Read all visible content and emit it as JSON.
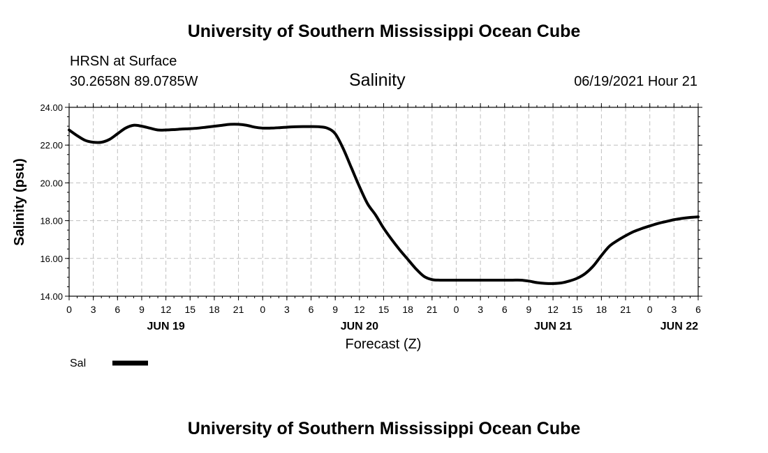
{
  "page_title": "University of Southern Mississippi Ocean Cube",
  "footer_title": "University of Southern Mississippi Ocean Cube",
  "station": {
    "name": "HRSN at Surface",
    "coords": "30.2658N  89.0785W",
    "datetime": "06/19/2021 Hour 21"
  },
  "legend": {
    "label": "Sal"
  },
  "chart_data": {
    "type": "line",
    "title": "Salinity",
    "xlabel": "Forecast (Z)",
    "ylabel": "Salinity (psu)",
    "xlim": [
      0,
      78
    ],
    "ylim": [
      14,
      24
    ],
    "y_ticks": [
      "14.00",
      "16.00",
      "18.00",
      "20.00",
      "22.00",
      "24.00"
    ],
    "x_ticks": [
      "0",
      "3",
      "6",
      "9",
      "12",
      "15",
      "18",
      "21",
      "0",
      "3",
      "6",
      "9",
      "12",
      "15",
      "18",
      "21",
      "0",
      "3",
      "6",
      "9",
      "12",
      "15",
      "18",
      "21",
      "0",
      "3",
      "6"
    ],
    "day_labels": [
      {
        "label": "JUN 19",
        "hour": 12
      },
      {
        "label": "JUN 20",
        "hour": 36
      },
      {
        "label": "JUN 21",
        "hour": 60
      },
      {
        "label": "JUN 22",
        "hour": 78
      }
    ],
    "grid": true,
    "series": [
      {
        "name": "Sal",
        "color": "#000000",
        "x": [
          0,
          1,
          2,
          3,
          4,
          5,
          6,
          7,
          8,
          9,
          10,
          11,
          12,
          13,
          14,
          15,
          16,
          17,
          18,
          19,
          20,
          21,
          22,
          23,
          24,
          25,
          26,
          27,
          28,
          29,
          30,
          31,
          32,
          33,
          34,
          35,
          36,
          37,
          38,
          39,
          40,
          41,
          42,
          43,
          44,
          45,
          46,
          47,
          48,
          49,
          50,
          51,
          52,
          53,
          54,
          55,
          56,
          57,
          58,
          59,
          60,
          61,
          62,
          63,
          64,
          65,
          66,
          67,
          68,
          69,
          70,
          71,
          72,
          73,
          74,
          75,
          76,
          77,
          78
        ],
        "values": [
          22.8,
          22.5,
          22.25,
          22.15,
          22.15,
          22.3,
          22.6,
          22.9,
          23.05,
          23.0,
          22.9,
          22.8,
          22.8,
          22.82,
          22.85,
          22.87,
          22.9,
          22.95,
          23.0,
          23.05,
          23.1,
          23.1,
          23.05,
          22.95,
          22.9,
          22.9,
          22.92,
          22.95,
          22.97,
          22.98,
          22.98,
          22.97,
          22.9,
          22.6,
          21.8,
          20.8,
          19.8,
          18.9,
          18.3,
          17.6,
          17.0,
          16.45,
          15.95,
          15.45,
          15.05,
          14.88,
          14.85,
          14.85,
          14.85,
          14.85,
          14.85,
          14.85,
          14.85,
          14.85,
          14.85,
          14.85,
          14.85,
          14.8,
          14.72,
          14.68,
          14.67,
          14.7,
          14.8,
          14.95,
          15.2,
          15.6,
          16.15,
          16.65,
          16.95,
          17.2,
          17.42,
          17.58,
          17.72,
          17.85,
          17.95,
          18.05,
          18.12,
          18.17,
          18.2
        ]
      }
    ]
  }
}
